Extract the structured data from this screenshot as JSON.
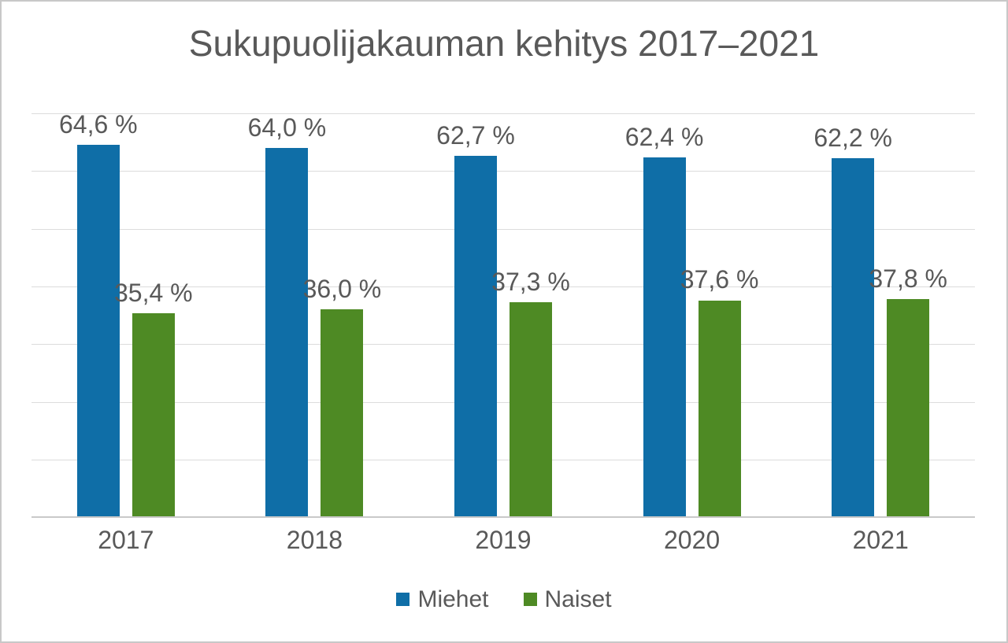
{
  "colors": {
    "text": "#595959",
    "gridline": "#dcdcdc",
    "axis_line": "#c9c9c9",
    "border": "#c8c8c8",
    "background": "#ffffff"
  },
  "chart_data": {
    "type": "bar",
    "title": "Sukupuolijakauman kehitys 2017–2021",
    "xlabel": "",
    "ylabel": "",
    "categories": [
      "2017",
      "2018",
      "2019",
      "2020",
      "2021"
    ],
    "series": [
      {
        "name": "Miehet",
        "color": "#0f6ea7",
        "values": [
          64.6,
          64.0,
          62.7,
          62.4,
          62.2
        ],
        "labels": [
          "64,6 %",
          "64,0 %",
          "62,7 %",
          "62,4 %",
          "62,2 %"
        ]
      },
      {
        "name": "Naiset",
        "color": "#4e8a24",
        "values": [
          35.4,
          36.0,
          37.3,
          37.6,
          37.8
        ],
        "labels": [
          "35,4 %",
          "36,0 %",
          "37,3 %",
          "37,6 %",
          "37,8 %"
        ]
      }
    ],
    "ylim": [
      0,
      70
    ],
    "grid_step": 10,
    "grid": true,
    "y_axis_labels_visible": false,
    "legend_position": "bottom"
  }
}
